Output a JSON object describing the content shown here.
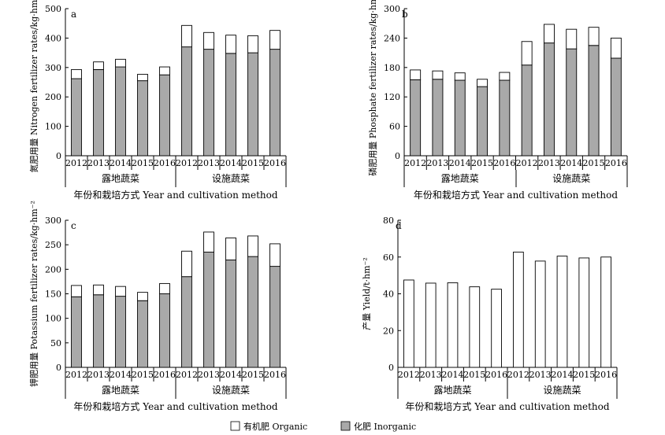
{
  "legend": {
    "items": [
      {
        "label": "有机肥 Organic",
        "color": "#ffffff"
      },
      {
        "label": "化肥 Inorganic",
        "color": "#a9a9a9"
      }
    ]
  },
  "chart_data": [
    {
      "panel": "a",
      "type": "bar",
      "stacked": true,
      "ylabel": "氮肥用量 Nitrogen fertilizer rates/kg·hm⁻²",
      "xlabel": "年份和栽培方式 Year and cultivation method",
      "ylim": [
        0,
        500
      ],
      "yticks": [
        0,
        100,
        200,
        300,
        400,
        500
      ],
      "categories": [
        "2012",
        "2013",
        "2014",
        "2015",
        "2016",
        "2012",
        "2013",
        "2014",
        "2015",
        "2016"
      ],
      "groups": [
        {
          "label": "露地蔬菜",
          "count": 5
        },
        {
          "label": "设施蔬菜",
          "count": 5
        }
      ],
      "series": [
        {
          "name": "化肥 Inorganic",
          "color": "#a9a9a9",
          "values": [
            262,
            293,
            302,
            255,
            275,
            370,
            362,
            348,
            350,
            362
          ]
        },
        {
          "name": "有机肥 Organic",
          "color": "#ffffff",
          "values": [
            31,
            26,
            26,
            22,
            27,
            73,
            57,
            62,
            58,
            64
          ]
        }
      ]
    },
    {
      "panel": "b",
      "type": "bar",
      "stacked": true,
      "ylabel": "磷肥用量 Phosphate fertilizer rates/kg·hm⁻²",
      "xlabel": "年份和栽培方式 Year and cultivation method",
      "ylim": [
        0,
        300
      ],
      "yticks": [
        0,
        60,
        120,
        180,
        240,
        300
      ],
      "categories": [
        "2012",
        "2013",
        "2014",
        "2015",
        "2016",
        "2012",
        "2013",
        "2014",
        "2015",
        "2016"
      ],
      "groups": [
        {
          "label": "露地蔬菜",
          "count": 5
        },
        {
          "label": "设施蔬菜",
          "count": 5
        }
      ],
      "series": [
        {
          "name": "化肥 Inorganic",
          "color": "#a9a9a9",
          "values": [
            155,
            156,
            154,
            141,
            154,
            185,
            230,
            218,
            225,
            199
          ]
        },
        {
          "name": "有机肥 Organic",
          "color": "#ffffff",
          "values": [
            20,
            17,
            15,
            15,
            16,
            48,
            38,
            40,
            37,
            41
          ]
        }
      ]
    },
    {
      "panel": "c",
      "type": "bar",
      "stacked": true,
      "ylabel": "钾肥用量 Potassium fertilizer rates/kg·hm⁻²",
      "xlabel": "年份和栽培方式 Year and cultivation method",
      "ylim": [
        0,
        300
      ],
      "yticks": [
        0,
        50,
        100,
        150,
        200,
        250,
        300
      ],
      "categories": [
        "2012",
        "2013",
        "2014",
        "2015",
        "2016",
        "2012",
        "2013",
        "2014",
        "2015",
        "2016"
      ],
      "groups": [
        {
          "label": "露地蔬菜",
          "count": 5
        },
        {
          "label": "设施蔬菜",
          "count": 5
        }
      ],
      "series": [
        {
          "name": "化肥 Inorganic",
          "color": "#a9a9a9",
          "values": [
            144,
            148,
            145,
            136,
            150,
            185,
            235,
            219,
            226,
            206
          ]
        },
        {
          "name": "有机肥 Organic",
          "color": "#ffffff",
          "values": [
            23,
            20,
            20,
            17,
            21,
            52,
            41,
            45,
            42,
            46
          ]
        }
      ]
    },
    {
      "panel": "d",
      "type": "bar",
      "stacked": false,
      "ylabel": "产量 Yield/t·hm⁻²",
      "xlabel": "年份和栽培方式 Year and cultivation method",
      "ylim": [
        0,
        80
      ],
      "yticks": [
        0,
        20,
        40,
        60,
        80
      ],
      "categories": [
        "2012",
        "2013",
        "2014",
        "2015",
        "2016",
        "2012",
        "2013",
        "2014",
        "2015",
        "2016"
      ],
      "groups": [
        {
          "label": "露地蔬菜",
          "count": 5
        },
        {
          "label": "设施蔬菜",
          "count": 5
        }
      ],
      "series": [
        {
          "color": "#ffffff",
          "values": [
            47.5,
            45.8,
            46.0,
            43.8,
            42.5,
            62.7,
            57.8,
            60.5,
            59.5,
            60.0
          ]
        }
      ]
    }
  ]
}
